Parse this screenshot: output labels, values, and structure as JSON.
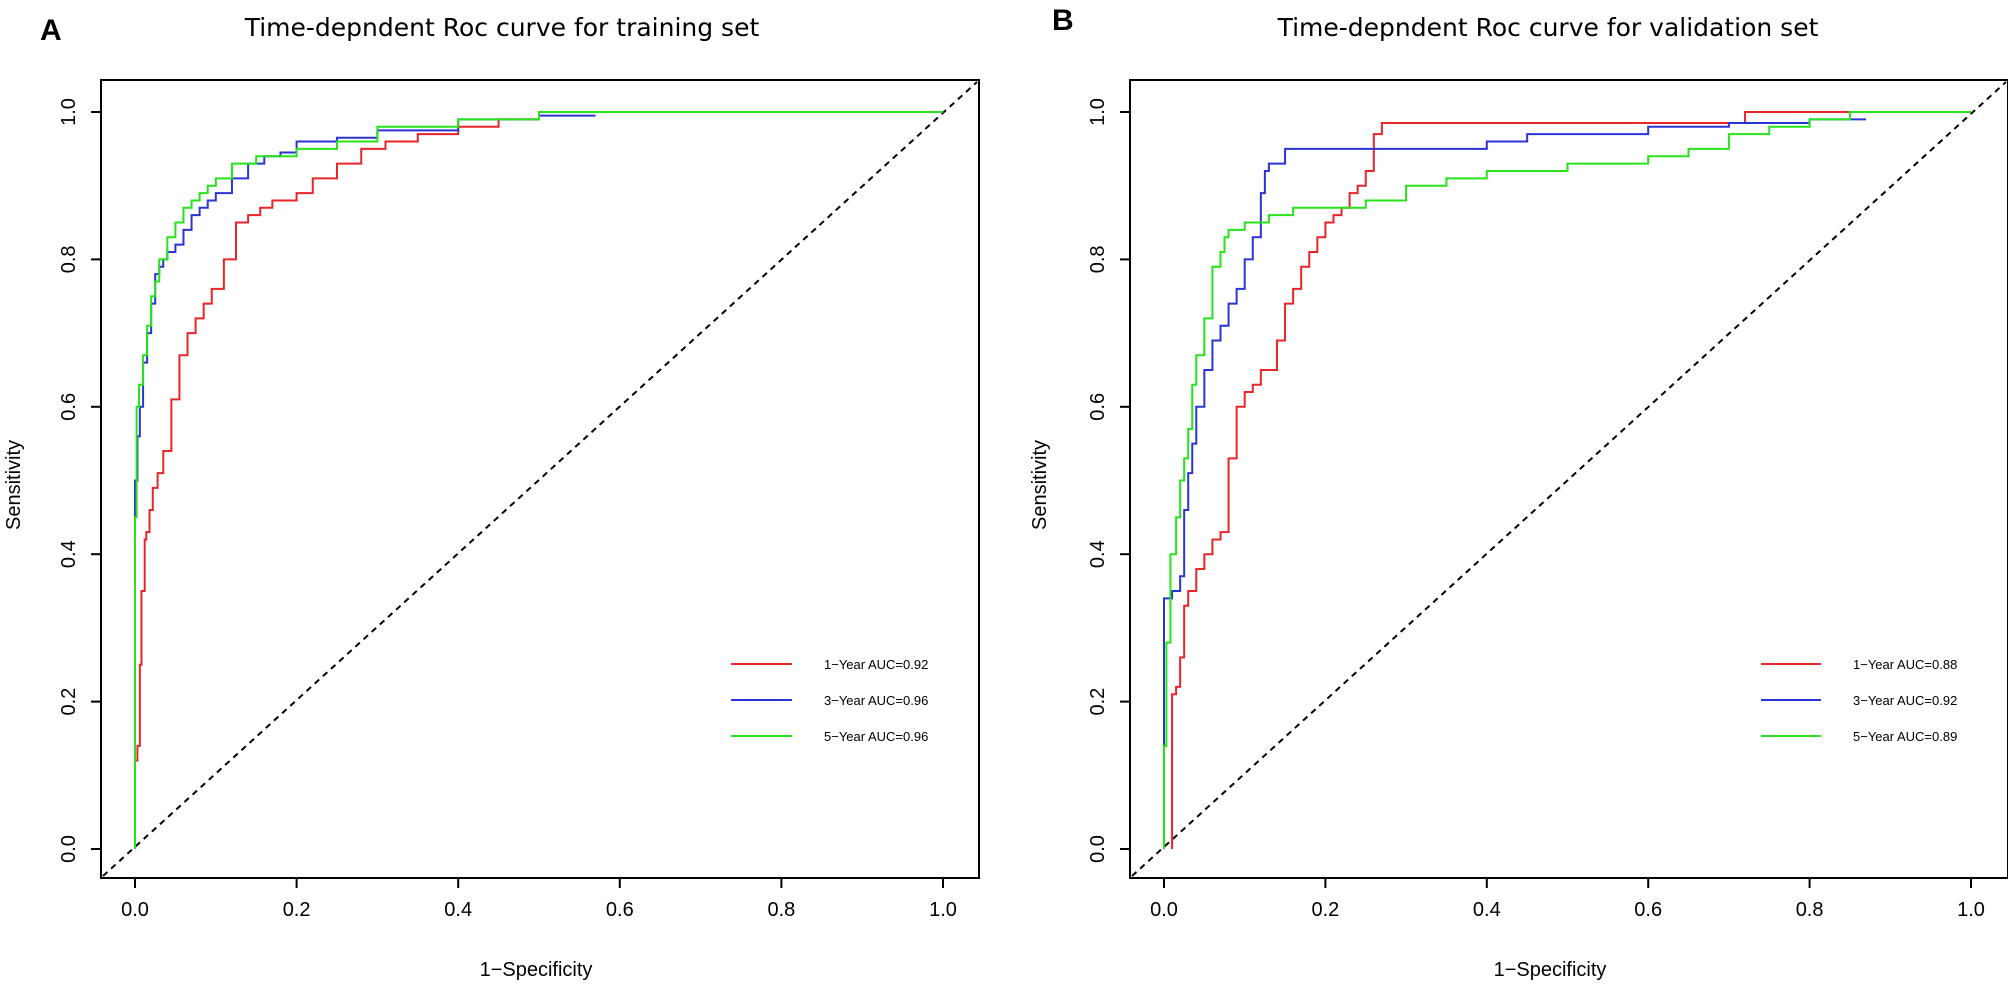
{
  "colors": {
    "year1": "#e8262a",
    "year3": "#2a35d6",
    "year5": "#27e31a",
    "reference": "#000000"
  },
  "chart_data": [
    {
      "type": "line",
      "panel_label": "A",
      "title": "Time-depndent Roc curve for training set",
      "xlabel": "1−Specificity",
      "ylabel": "Sensitivity",
      "xlim": [
        0,
        1
      ],
      "ylim": [
        0,
        1
      ],
      "xticks": [
        "0.0",
        "0.2",
        "0.4",
        "0.6",
        "0.8",
        "1.0"
      ],
      "yticks": [
        "0.0",
        "0.2",
        "0.4",
        "0.6",
        "0.8",
        "1.0"
      ],
      "reference_line": "dashed diagonal",
      "legend_position": "bottom-right",
      "series": [
        {
          "name": "1−Year AUC=0.92",
          "color_key": "year1",
          "x": [
            0,
            0.003,
            0.006,
            0.008,
            0.012,
            0.014,
            0.018,
            0.022,
            0.028,
            0.035,
            0.045,
            0.055,
            0.065,
            0.075,
            0.085,
            0.095,
            0.11,
            0.125,
            0.14,
            0.155,
            0.17,
            0.185,
            0.2,
            0.22,
            0.25,
            0.28,
            0.31,
            0.35,
            0.4,
            0.45,
            0.5,
            0.57
          ],
          "y": [
            0.07,
            0.12,
            0.14,
            0.25,
            0.35,
            0.42,
            0.43,
            0.46,
            0.49,
            0.51,
            0.54,
            0.61,
            0.67,
            0.7,
            0.72,
            0.74,
            0.76,
            0.8,
            0.85,
            0.86,
            0.87,
            0.88,
            0.88,
            0.89,
            0.91,
            0.93,
            0.95,
            0.96,
            0.97,
            0.98,
            0.99,
            1.0
          ]
        },
        {
          "name": "3−Year AUC=0.96",
          "color_key": "year3",
          "x": [
            0,
            0.003,
            0.006,
            0.01,
            0.015,
            0.02,
            0.025,
            0.03,
            0.035,
            0.04,
            0.05,
            0.06,
            0.07,
            0.08,
            0.09,
            0.1,
            0.12,
            0.14,
            0.16,
            0.18,
            0.2,
            0.25,
            0.3,
            0.4,
            0.5,
            0.57
          ],
          "y": [
            0.44,
            0.5,
            0.56,
            0.6,
            0.66,
            0.7,
            0.74,
            0.78,
            0.79,
            0.8,
            0.81,
            0.82,
            0.84,
            0.86,
            0.87,
            0.88,
            0.89,
            0.91,
            0.93,
            0.94,
            0.945,
            0.96,
            0.965,
            0.975,
            0.99,
            0.995
          ]
        },
        {
          "name": "5−Year AUC=0.96",
          "color_key": "year5",
          "x": [
            0,
            0.002,
            0.005,
            0.01,
            0.015,
            0.02,
            0.025,
            0.03,
            0.04,
            0.05,
            0.06,
            0.07,
            0.08,
            0.09,
            0.1,
            0.12,
            0.15,
            0.2,
            0.25,
            0.3,
            0.4,
            0.5,
            0.57,
            1.0
          ],
          "y": [
            0,
            0.45,
            0.6,
            0.63,
            0.67,
            0.71,
            0.75,
            0.77,
            0.8,
            0.83,
            0.85,
            0.87,
            0.88,
            0.89,
            0.9,
            0.91,
            0.93,
            0.94,
            0.95,
            0.96,
            0.98,
            0.99,
            1.0,
            1.0
          ]
        }
      ]
    },
    {
      "type": "line",
      "panel_label": "B",
      "title": "Time-depndent Roc curve for validation set",
      "xlabel": "1−Specificity",
      "ylabel": "Sensitivity",
      "xlim": [
        0,
        1
      ],
      "ylim": [
        0,
        1
      ],
      "xticks": [
        "0.0",
        "0.2",
        "0.4",
        "0.6",
        "0.8",
        "1.0"
      ],
      "yticks": [
        "0.0",
        "0.2",
        "0.4",
        "0.6",
        "0.8",
        "1.0"
      ],
      "reference_line": "dashed diagonal",
      "legend_position": "bottom-right",
      "series": [
        {
          "name": "1−Year AUC=0.88",
          "color_key": "year1",
          "x": [
            0.01,
            0.01,
            0.015,
            0.02,
            0.025,
            0.03,
            0.04,
            0.05,
            0.06,
            0.07,
            0.08,
            0.09,
            0.1,
            0.11,
            0.12,
            0.14,
            0.15,
            0.16,
            0.17,
            0.18,
            0.19,
            0.2,
            0.21,
            0.22,
            0.23,
            0.24,
            0.25,
            0.26,
            0.27,
            0.28,
            0.5,
            0.72,
            0.76,
            0.85
          ],
          "y": [
            0,
            0.14,
            0.21,
            0.22,
            0.26,
            0.33,
            0.35,
            0.38,
            0.4,
            0.42,
            0.43,
            0.53,
            0.6,
            0.62,
            0.63,
            0.65,
            0.69,
            0.74,
            0.76,
            0.79,
            0.81,
            0.83,
            0.85,
            0.86,
            0.87,
            0.89,
            0.9,
            0.92,
            0.97,
            0.985,
            0.985,
            0.985,
            1.0,
            1.0
          ]
        },
        {
          "name": "3−Year AUC=0.92",
          "color_key": "year3",
          "x": [
            0,
            0.0,
            0.01,
            0.02,
            0.025,
            0.03,
            0.035,
            0.04,
            0.05,
            0.06,
            0.07,
            0.08,
            0.09,
            0.1,
            0.11,
            0.12,
            0.125,
            0.13,
            0.15,
            0.2,
            0.3,
            0.4,
            0.45,
            0.5,
            0.6,
            0.7,
            0.8,
            0.87
          ],
          "y": [
            0.14,
            0.16,
            0.34,
            0.35,
            0.37,
            0.46,
            0.51,
            0.55,
            0.6,
            0.65,
            0.69,
            0.71,
            0.74,
            0.76,
            0.8,
            0.83,
            0.89,
            0.92,
            0.93,
            0.95,
            0.95,
            0.95,
            0.96,
            0.97,
            0.97,
            0.98,
            0.985,
            0.99
          ]
        },
        {
          "name": "5−Year AUC=0.89",
          "color_key": "year5",
          "x": [
            0,
            0.003,
            0.008,
            0.015,
            0.02,
            0.025,
            0.03,
            0.035,
            0.04,
            0.05,
            0.06,
            0.07,
            0.075,
            0.08,
            0.1,
            0.13,
            0.16,
            0.2,
            0.25,
            0.3,
            0.35,
            0.4,
            0.5,
            0.6,
            0.65,
            0.7,
            0.75,
            0.8,
            0.85,
            1.0
          ],
          "y": [
            0,
            0.14,
            0.28,
            0.4,
            0.45,
            0.5,
            0.53,
            0.57,
            0.63,
            0.67,
            0.72,
            0.79,
            0.81,
            0.83,
            0.84,
            0.85,
            0.86,
            0.87,
            0.87,
            0.88,
            0.9,
            0.91,
            0.92,
            0.93,
            0.94,
            0.95,
            0.97,
            0.98,
            0.99,
            1.0
          ]
        }
      ]
    }
  ]
}
